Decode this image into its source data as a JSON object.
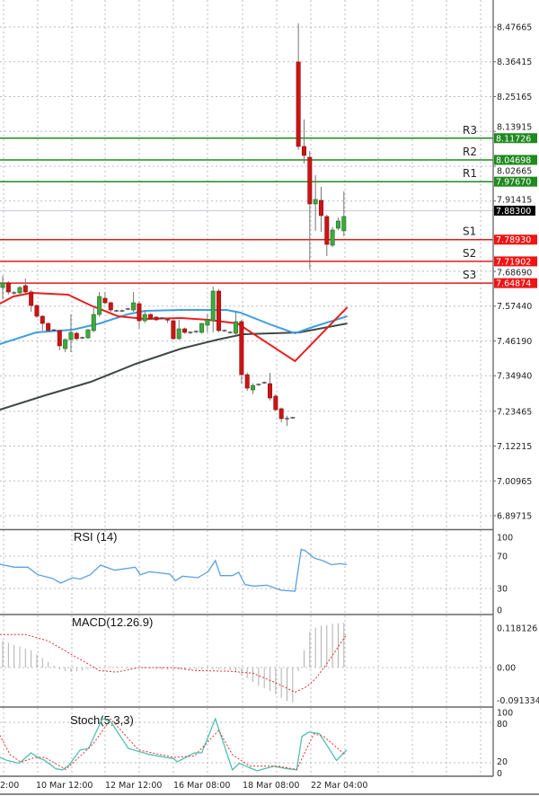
{
  "chart_data": [
    {
      "type": "candlestick",
      "panel": "main",
      "y_ticks": [
        "8.47665",
        "8.36415",
        "8.25165",
        "8.13915",
        "8.02665",
        "7.91415",
        "7.68690",
        "7.57440",
        "7.46190",
        "7.34940",
        "7.23465",
        "7.12215",
        "7.00965",
        "6.89715"
      ],
      "ylim": [
        6.89715,
        8.47665
      ],
      "grid": true,
      "x_tick_labels": [
        "2:00",
        "10 Mar 12:00",
        "12 Mar 12:00",
        "16 Mar 08:00",
        "18 Mar 08:00",
        "22 Mar 04:00"
      ],
      "current_price": "7.88300",
      "colors": {
        "bull": "#3daa3d",
        "bear": "#cc1414",
        "resistance": "#1e8c1e",
        "support": "#e01b1b",
        "ma_fast": "#e82020",
        "ma_mid": "#3f9ee0",
        "ma_slow": "#404848"
      },
      "levels": [
        {
          "name": "R3",
          "value": "8.11726",
          "kind": "resistance"
        },
        {
          "name": "R2",
          "value": "8.04698",
          "kind": "resistance"
        },
        {
          "name": "R1",
          "value": "7.97670",
          "kind": "resistance"
        },
        {
          "name": "S1",
          "value": "7.78930",
          "kind": "support"
        },
        {
          "name": "S2",
          "value": "7.71902",
          "kind": "support"
        },
        {
          "name": "S3",
          "value": "7.64874",
          "kind": "support"
        }
      ],
      "ohlc": [
        [
          7.6346,
          7.6724,
          7.5969,
          7.6491
        ],
        [
          7.6491,
          7.655,
          7.612,
          7.6201
        ],
        [
          7.6172,
          7.623,
          7.611,
          7.6172
        ],
        [
          7.6172,
          7.64,
          7.612,
          7.6346
        ],
        [
          7.6405,
          7.6637,
          7.615,
          7.6201
        ],
        [
          7.6201,
          7.626,
          7.5563,
          7.5765
        ],
        [
          7.5765,
          7.58,
          7.536,
          7.5417
        ],
        [
          7.5417,
          7.545,
          7.4953,
          7.5185
        ],
        [
          7.5185,
          7.522,
          7.49,
          7.4953
        ],
        [
          7.497,
          7.5,
          7.492,
          7.497
        ],
        [
          7.4953,
          7.499,
          7.4314,
          7.446
        ],
        [
          7.4372,
          7.47,
          7.4256,
          7.4663
        ],
        [
          7.4663,
          7.5475,
          7.4256,
          7.4895
        ],
        [
          7.4866,
          7.492,
          7.465,
          7.4692
        ],
        [
          7.472,
          7.476,
          7.468,
          7.472
        ],
        [
          7.472,
          7.5,
          7.468,
          7.4982
        ],
        [
          7.4953,
          7.5765,
          7.49,
          7.5475
        ],
        [
          7.5475,
          7.6201,
          7.54,
          7.6056
        ],
        [
          7.5998,
          7.62,
          7.58,
          7.5853
        ],
        [
          7.5853,
          7.59,
          7.556,
          7.562
        ],
        [
          7.5591,
          7.563,
          7.555,
          7.5591
        ],
        [
          7.5591,
          7.563,
          7.555,
          7.5591
        ],
        [
          7.565,
          7.569,
          7.561,
          7.565
        ],
        [
          7.562,
          7.6201,
          7.556,
          7.5853
        ],
        [
          7.5824,
          7.59,
          7.5011,
          7.5272
        ],
        [
          7.5272,
          7.56,
          7.52,
          7.5475
        ],
        [
          7.5475,
          7.552,
          7.53,
          7.533
        ],
        [
          7.5388,
          7.542,
          7.527,
          7.5301
        ],
        [
          7.5359,
          7.539,
          7.532,
          7.5359
        ],
        [
          7.5301,
          7.534,
          7.52,
          7.5301
        ],
        [
          7.5272,
          7.53,
          7.465,
          7.4692
        ],
        [
          7.4692,
          7.53,
          7.465,
          7.5011
        ],
        [
          7.5011,
          7.505,
          7.485,
          7.4895
        ],
        [
          7.4895,
          7.493,
          7.483,
          7.4895
        ],
        [
          7.4924,
          7.496,
          7.487,
          7.4924
        ],
        [
          7.4895,
          7.52,
          7.485,
          7.5185
        ],
        [
          7.5127,
          7.55,
          7.49,
          7.5301
        ],
        [
          7.5272,
          7.6375,
          7.49,
          7.623
        ],
        [
          7.623,
          7.63,
          7.49,
          7.4953
        ],
        [
          7.4953,
          7.499,
          7.491,
          7.4953
        ],
        [
          7.4895,
          7.493,
          7.485,
          7.4895
        ],
        [
          7.4866,
          7.5591,
          7.48,
          7.5243
        ],
        [
          7.5243,
          7.53,
          7.324,
          7.353
        ],
        [
          7.353,
          7.36,
          7.3,
          7.3094
        ],
        [
          7.3036,
          7.325,
          7.29,
          7.3181
        ],
        [
          7.3211,
          7.325,
          7.317,
          7.3211
        ],
        [
          7.3269,
          7.331,
          7.323,
          7.3269
        ],
        [
          7.324,
          7.3588,
          7.27,
          7.2775
        ],
        [
          7.2834,
          7.29,
          7.235,
          7.2398
        ],
        [
          7.2427,
          7.247,
          7.1991,
          7.2108
        ],
        [
          7.2108,
          7.22,
          7.1875,
          7.2108
        ],
        [
          7.2137,
          7.217,
          7.21,
          7.2137
        ],
        [
          8.3635,
          8.4883,
          8.08,
          8.0905
        ],
        [
          8.0905,
          8.1776,
          8.0353,
          8.0615
        ],
        [
          8.0557,
          8.076,
          7.6927,
          7.9047
        ],
        [
          7.9047,
          7.9976,
          7.8176,
          7.9192
        ],
        [
          7.9163,
          7.9599,
          7.8147,
          7.867
        ],
        [
          7.864,
          7.87,
          7.7363,
          7.774
        ],
        [
          7.7711,
          7.83,
          7.765,
          7.8205
        ],
        [
          7.8263,
          7.86,
          7.82,
          7.8495
        ],
        [
          7.8176,
          7.9453,
          7.8,
          7.864
        ]
      ],
      "moving_averages": {
        "fast": [
          [
            -0.5,
            7.5824
          ],
          [
            1.9,
            7.6056
          ],
          [
            5.1,
            7.6172
          ],
          [
            11.5,
            7.6114
          ],
          [
            15.5,
            7.5765
          ],
          [
            20.3,
            7.5417
          ],
          [
            25,
            7.533
          ],
          [
            31.4,
            7.5359
          ],
          [
            36.2,
            7.5301
          ],
          [
            41.3,
            7.5185
          ],
          [
            51.4,
            7.3965
          ],
          [
            60.6,
            7.5707
          ]
        ],
        "mid": [
          [
            -0.5,
            7.4518
          ],
          [
            5.9,
            7.4895
          ],
          [
            12.3,
            7.4982
          ],
          [
            17.1,
            7.5185
          ],
          [
            21.9,
            7.5475
          ],
          [
            25,
            7.5591
          ],
          [
            31.4,
            7.562
          ],
          [
            39.4,
            7.562
          ],
          [
            41.8,
            7.5533
          ],
          [
            47.4,
            7.5127
          ],
          [
            51.4,
            7.4866
          ],
          [
            54.5,
            7.5069
          ],
          [
            60.6,
            7.5417
          ]
        ],
        "slow": [
          [
            -0.5,
            7.2398
          ],
          [
            7.5,
            7.2862
          ],
          [
            15.5,
            7.3298
          ],
          [
            23.4,
            7.3878
          ],
          [
            31.4,
            7.4372
          ],
          [
            37.8,
            7.4663
          ],
          [
            42.3,
            7.4837
          ],
          [
            47.4,
            7.4866
          ],
          [
            52.2,
            7.4895
          ],
          [
            60.6,
            7.5185
          ]
        ]
      }
    },
    {
      "type": "line",
      "panel": "rsi",
      "title": "RSI (14)",
      "y_ticks": [
        "100",
        "70",
        "30",
        "0"
      ],
      "ylim": [
        0,
        100
      ],
      "color": "#5aa0e0",
      "values": [
        [
          -0.5,
          60
        ],
        [
          2,
          56.3
        ],
        [
          4.4,
          56.3
        ],
        [
          6.2,
          47
        ],
        [
          8.7,
          42.6
        ],
        [
          10.2,
          36.7
        ],
        [
          12.3,
          43.3
        ],
        [
          13.6,
          41.5
        ],
        [
          15.4,
          47
        ],
        [
          17.2,
          58.9
        ],
        [
          19.7,
          52.6
        ],
        [
          23.3,
          56.3
        ],
        [
          24.2,
          47
        ],
        [
          25.8,
          50.7
        ],
        [
          29.4,
          47.8
        ],
        [
          30.4,
          39.6
        ],
        [
          31.6,
          45.2
        ],
        [
          34.3,
          43.3
        ],
        [
          36.1,
          50.7
        ],
        [
          37.4,
          64.4
        ],
        [
          38.3,
          45.9
        ],
        [
          40.4,
          45.9
        ],
        [
          41.5,
          50
        ],
        [
          42.6,
          34.8
        ],
        [
          44.1,
          33
        ],
        [
          46.5,
          34
        ],
        [
          49,
          27.8
        ],
        [
          51.4,
          26.7
        ],
        [
          52.5,
          78.5
        ],
        [
          53.2,
          76.7
        ],
        [
          54.8,
          67.4
        ],
        [
          56.3,
          64.4
        ],
        [
          57.8,
          59.3
        ],
        [
          59.3,
          60.7
        ],
        [
          60.5,
          59.6
        ]
      ]
    },
    {
      "type": "bar",
      "panel": "macd",
      "title": "MACD(12.26.9)",
      "y_ticks": [
        "0.118126",
        "0.00",
        "-0.091334"
      ],
      "ylim": [
        -0.091334,
        0.118126
      ],
      "histogram_color": "#b0b0b0",
      "signal_color": "#e03030",
      "histogram": [
        0.07,
        0.065,
        0.06,
        0.055,
        0.05,
        0.045,
        0.035,
        0.025,
        0.015,
        0.005,
        -0.005,
        -0.01,
        -0.012,
        -0.01,
        -0.008,
        -0.005,
        -0.002,
        0.002,
        0.003,
        0.003,
        0.002,
        0.002,
        0.002,
        0.001,
        0,
        -0.002,
        -0.003,
        -0.004,
        -0.005,
        -0.006,
        -0.006,
        -0.006,
        -0.006,
        -0.006,
        -0.006,
        -0.005,
        -0.003,
        -0.004,
        -0.005,
        -0.006,
        -0.008,
        -0.012,
        -0.02,
        -0.028,
        -0.038,
        -0.048,
        -0.055,
        -0.062,
        -0.07,
        -0.08,
        -0.088,
        -0.092,
        -0.01,
        0.045,
        0.095,
        0.105,
        0.11,
        0.112,
        0.115,
        0.117,
        0.118
      ],
      "signal": [
        [
          -0.5,
          0.087
        ],
        [
          4,
          0.087
        ],
        [
          8,
          0.07
        ],
        [
          12,
          0.035
        ],
        [
          15,
          0.01
        ],
        [
          17,
          -0.008
        ],
        [
          20,
          -0.012
        ],
        [
          24,
          0
        ],
        [
          30,
          0
        ],
        [
          34,
          -0.008
        ],
        [
          40,
          -0.01
        ],
        [
          44,
          -0.015
        ],
        [
          48,
          -0.04
        ],
        [
          51.4,
          -0.065
        ],
        [
          53.5,
          -0.05
        ],
        [
          55,
          -0.03
        ],
        [
          57,
          0.01
        ],
        [
          60.5,
          0.088
        ]
      ]
    },
    {
      "type": "line",
      "panel": "stochastic",
      "title": "Stoch(5,3,3)",
      "y_ticks": [
        "100",
        "80",
        "20",
        "0"
      ],
      "ylim": [
        0,
        100
      ],
      "main_color": "#4fc0b0",
      "signal_color": "#e03030",
      "main": [
        [
          -0.5,
          28
        ],
        [
          0.7,
          23.6
        ],
        [
          2.9,
          19.2
        ],
        [
          5,
          34.6
        ],
        [
          6.2,
          28
        ],
        [
          7.4,
          23.6
        ],
        [
          9.3,
          11.3
        ],
        [
          10.5,
          9.5
        ],
        [
          11.7,
          17
        ],
        [
          13.6,
          39
        ],
        [
          15.1,
          41.2
        ],
        [
          17.5,
          85.3
        ],
        [
          19,
          80.9
        ],
        [
          22.1,
          41.2
        ],
        [
          23.9,
          36.8
        ],
        [
          25.8,
          32.4
        ],
        [
          30.1,
          25.8
        ],
        [
          30.7,
          21.4
        ],
        [
          33.7,
          34.6
        ],
        [
          35,
          34.6
        ],
        [
          37.4,
          85.3
        ],
        [
          40.4,
          9.5
        ],
        [
          41.6,
          19.2
        ],
        [
          44.7,
          8.2
        ],
        [
          47.7,
          14.8
        ],
        [
          49.9,
          11.3
        ],
        [
          51.7,
          9.5
        ],
        [
          52.6,
          58.9
        ],
        [
          53.8,
          65.5
        ],
        [
          55.7,
          63.3
        ],
        [
          58.7,
          23.6
        ],
        [
          60.5,
          39
        ]
      ],
      "signal": [
        [
          -0.5,
          61
        ],
        [
          1.3,
          32
        ],
        [
          3.2,
          21
        ],
        [
          5.7,
          28
        ],
        [
          7.4,
          28
        ],
        [
          11.1,
          10
        ],
        [
          14.3,
          35
        ],
        [
          16.1,
          50
        ],
        [
          19,
          85
        ],
        [
          23.9,
          39
        ],
        [
          30.1,
          28
        ],
        [
          33.7,
          30
        ],
        [
          38,
          68
        ],
        [
          40.4,
          32
        ],
        [
          43.5,
          15
        ],
        [
          48.4,
          15
        ],
        [
          51.7,
          10
        ],
        [
          54.7,
          63
        ],
        [
          56.5,
          59
        ],
        [
          60.2,
          32
        ]
      ]
    }
  ]
}
